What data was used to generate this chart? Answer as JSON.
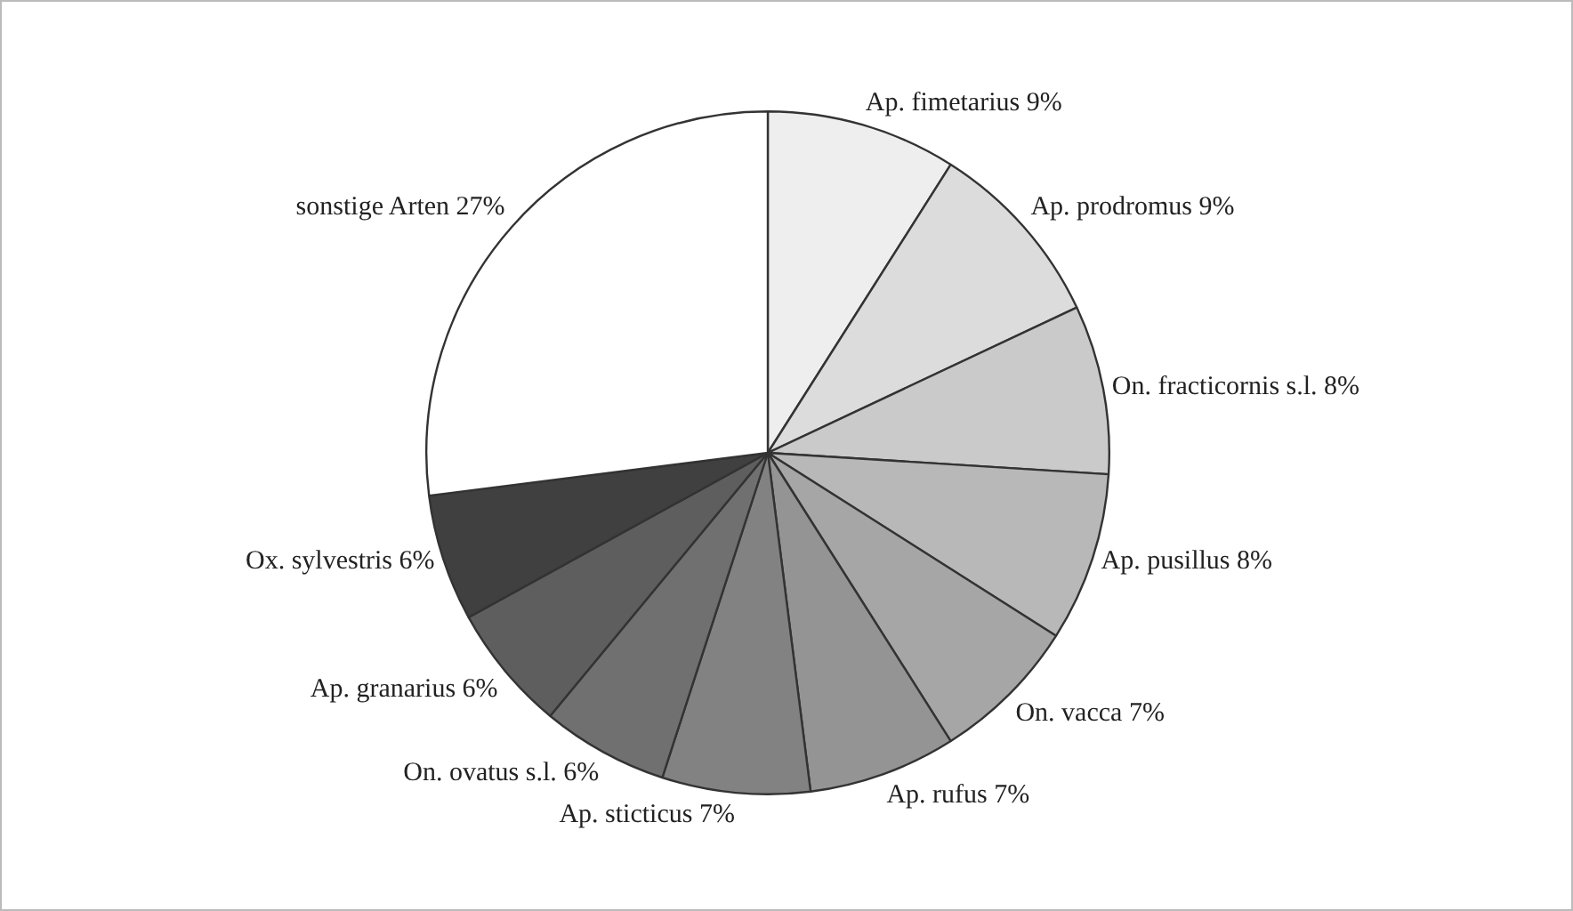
{
  "chart_data": {
    "type": "pie",
    "categories": [
      "Ap. fimetarius",
      "Ap. prodromus",
      "On. fracticornis s.l.",
      "Ap. pusillus",
      "On. vacca",
      "Ap. rufus",
      "Ap. sticticus",
      "On. ovatus s.l.",
      "Ap. granarius",
      "Ox. sylvestris",
      "sonstige Arten"
    ],
    "values": [
      9,
      9,
      8,
      8,
      7,
      7,
      7,
      6,
      6,
      6,
      27
    ],
    "value_labels": [
      "9%",
      "9%",
      "8%",
      "8%",
      "7%",
      "7%",
      "7%",
      "6%",
      "6%",
      "6%",
      "27%"
    ],
    "colors": [
      "#eeeeee",
      "#dcdcdc",
      "#cacaca",
      "#b8b8b8",
      "#a6a6a6",
      "#949494",
      "#828282",
      "#707070",
      "#5e5e5e",
      "#404040",
      "#ffffff"
    ],
    "legend": false
  }
}
